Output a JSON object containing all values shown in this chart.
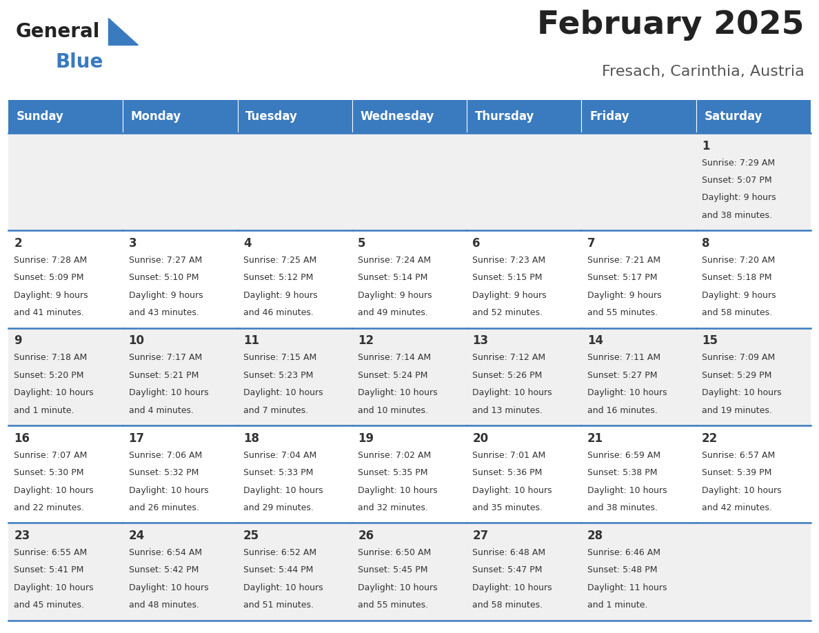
{
  "title": "February 2025",
  "subtitle": "Fresach, Carinthia, Austria",
  "days_of_week": [
    "Sunday",
    "Monday",
    "Tuesday",
    "Wednesday",
    "Thursday",
    "Friday",
    "Saturday"
  ],
  "header_bg": "#3a7abf",
  "header_text": "#ffffff",
  "row_bg_odd": "#f0f0f0",
  "row_bg_even": "#ffffff",
  "cell_text": "#333333",
  "border_color": "#3a7abf",
  "title_color": "#222222",
  "subtitle_color": "#555555",
  "logo_general_color": "#222222",
  "logo_blue_color": "#3a7abf",
  "calendar_data": [
    [
      null,
      null,
      null,
      null,
      null,
      null,
      {
        "day": "1",
        "sunrise": "7:29 AM",
        "sunset": "5:07 PM",
        "daylight_line1": "Daylight: 9 hours",
        "daylight_line2": "and 38 minutes."
      }
    ],
    [
      {
        "day": "2",
        "sunrise": "7:28 AM",
        "sunset": "5:09 PM",
        "daylight_line1": "Daylight: 9 hours",
        "daylight_line2": "and 41 minutes."
      },
      {
        "day": "3",
        "sunrise": "7:27 AM",
        "sunset": "5:10 PM",
        "daylight_line1": "Daylight: 9 hours",
        "daylight_line2": "and 43 minutes."
      },
      {
        "day": "4",
        "sunrise": "7:25 AM",
        "sunset": "5:12 PM",
        "daylight_line1": "Daylight: 9 hours",
        "daylight_line2": "and 46 minutes."
      },
      {
        "day": "5",
        "sunrise": "7:24 AM",
        "sunset": "5:14 PM",
        "daylight_line1": "Daylight: 9 hours",
        "daylight_line2": "and 49 minutes."
      },
      {
        "day": "6",
        "sunrise": "7:23 AM",
        "sunset": "5:15 PM",
        "daylight_line1": "Daylight: 9 hours",
        "daylight_line2": "and 52 minutes."
      },
      {
        "day": "7",
        "sunrise": "7:21 AM",
        "sunset": "5:17 PM",
        "daylight_line1": "Daylight: 9 hours",
        "daylight_line2": "and 55 minutes."
      },
      {
        "day": "8",
        "sunrise": "7:20 AM",
        "sunset": "5:18 PM",
        "daylight_line1": "Daylight: 9 hours",
        "daylight_line2": "and 58 minutes."
      }
    ],
    [
      {
        "day": "9",
        "sunrise": "7:18 AM",
        "sunset": "5:20 PM",
        "daylight_line1": "Daylight: 10 hours",
        "daylight_line2": "and 1 minute."
      },
      {
        "day": "10",
        "sunrise": "7:17 AM",
        "sunset": "5:21 PM",
        "daylight_line1": "Daylight: 10 hours",
        "daylight_line2": "and 4 minutes."
      },
      {
        "day": "11",
        "sunrise": "7:15 AM",
        "sunset": "5:23 PM",
        "daylight_line1": "Daylight: 10 hours",
        "daylight_line2": "and 7 minutes."
      },
      {
        "day": "12",
        "sunrise": "7:14 AM",
        "sunset": "5:24 PM",
        "daylight_line1": "Daylight: 10 hours",
        "daylight_line2": "and 10 minutes."
      },
      {
        "day": "13",
        "sunrise": "7:12 AM",
        "sunset": "5:26 PM",
        "daylight_line1": "Daylight: 10 hours",
        "daylight_line2": "and 13 minutes."
      },
      {
        "day": "14",
        "sunrise": "7:11 AM",
        "sunset": "5:27 PM",
        "daylight_line1": "Daylight: 10 hours",
        "daylight_line2": "and 16 minutes."
      },
      {
        "day": "15",
        "sunrise": "7:09 AM",
        "sunset": "5:29 PM",
        "daylight_line1": "Daylight: 10 hours",
        "daylight_line2": "and 19 minutes."
      }
    ],
    [
      {
        "day": "16",
        "sunrise": "7:07 AM",
        "sunset": "5:30 PM",
        "daylight_line1": "Daylight: 10 hours",
        "daylight_line2": "and 22 minutes."
      },
      {
        "day": "17",
        "sunrise": "7:06 AM",
        "sunset": "5:32 PM",
        "daylight_line1": "Daylight: 10 hours",
        "daylight_line2": "and 26 minutes."
      },
      {
        "day": "18",
        "sunrise": "7:04 AM",
        "sunset": "5:33 PM",
        "daylight_line1": "Daylight: 10 hours",
        "daylight_line2": "and 29 minutes."
      },
      {
        "day": "19",
        "sunrise": "7:02 AM",
        "sunset": "5:35 PM",
        "daylight_line1": "Daylight: 10 hours",
        "daylight_line2": "and 32 minutes."
      },
      {
        "day": "20",
        "sunrise": "7:01 AM",
        "sunset": "5:36 PM",
        "daylight_line1": "Daylight: 10 hours",
        "daylight_line2": "and 35 minutes."
      },
      {
        "day": "21",
        "sunrise": "6:59 AM",
        "sunset": "5:38 PM",
        "daylight_line1": "Daylight: 10 hours",
        "daylight_line2": "and 38 minutes."
      },
      {
        "day": "22",
        "sunrise": "6:57 AM",
        "sunset": "5:39 PM",
        "daylight_line1": "Daylight: 10 hours",
        "daylight_line2": "and 42 minutes."
      }
    ],
    [
      {
        "day": "23",
        "sunrise": "6:55 AM",
        "sunset": "5:41 PM",
        "daylight_line1": "Daylight: 10 hours",
        "daylight_line2": "and 45 minutes."
      },
      {
        "day": "24",
        "sunrise": "6:54 AM",
        "sunset": "5:42 PM",
        "daylight_line1": "Daylight: 10 hours",
        "daylight_line2": "and 48 minutes."
      },
      {
        "day": "25",
        "sunrise": "6:52 AM",
        "sunset": "5:44 PM",
        "daylight_line1": "Daylight: 10 hours",
        "daylight_line2": "and 51 minutes."
      },
      {
        "day": "26",
        "sunrise": "6:50 AM",
        "sunset": "5:45 PM",
        "daylight_line1": "Daylight: 10 hours",
        "daylight_line2": "and 55 minutes."
      },
      {
        "day": "27",
        "sunrise": "6:48 AM",
        "sunset": "5:47 PM",
        "daylight_line1": "Daylight: 10 hours",
        "daylight_line2": "and 58 minutes."
      },
      {
        "day": "28",
        "sunrise": "6:46 AM",
        "sunset": "5:48 PM",
        "daylight_line1": "Daylight: 11 hours",
        "daylight_line2": "and 1 minute."
      },
      null
    ]
  ]
}
